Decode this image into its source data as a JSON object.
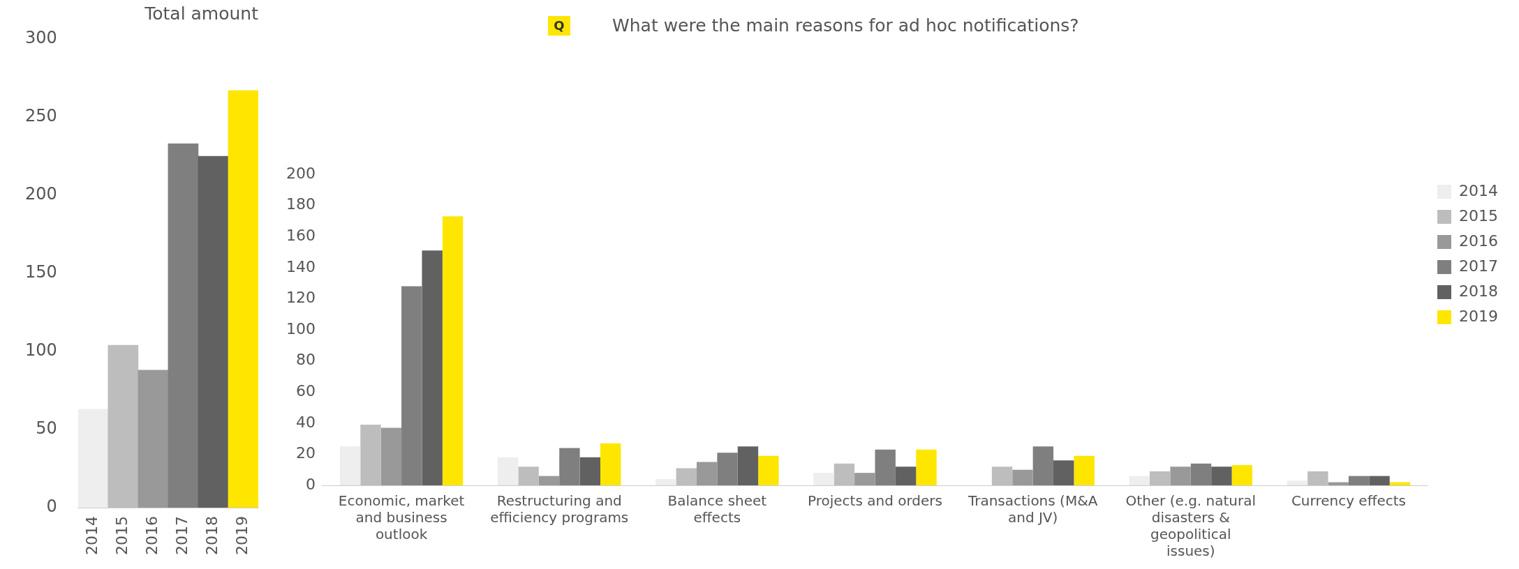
{
  "chart_data": [
    {
      "type": "bar",
      "title": "Total amount",
      "categories": [
        "2014",
        "2015",
        "2016",
        "2017",
        "2018",
        "2019"
      ],
      "values": [
        63,
        104,
        88,
        233,
        225,
        267
      ],
      "colors": [
        "#eeeeee",
        "#bdbdbd",
        "#999999",
        "#7f7f7f",
        "#616161",
        "#ffe600"
      ],
      "ylim": [
        0,
        300
      ],
      "yticks": [
        0,
        50,
        100,
        150,
        200,
        250,
        300
      ]
    },
    {
      "type": "bar",
      "title": "What were the main reasons for ad hoc notifications?",
      "categories": [
        "Economic, market and business outlook",
        "Restructuring and efficiency programs",
        "Balance sheet effects",
        "Projects and orders",
        "Transactions (M&A and JV)",
        "Other (e.g. natural disasters & geopolitical issues)",
        "Currency effects"
      ],
      "series": [
        {
          "name": "2014",
          "color": "#eeeeee",
          "values": [
            25,
            18,
            4,
            8,
            0,
            6,
            3
          ]
        },
        {
          "name": "2015",
          "color": "#bdbdbd",
          "values": [
            39,
            12,
            11,
            14,
            12,
            9,
            9
          ]
        },
        {
          "name": "2016",
          "color": "#999999",
          "values": [
            37,
            6,
            15,
            8,
            10,
            12,
            2
          ]
        },
        {
          "name": "2017",
          "color": "#7f7f7f",
          "values": [
            128,
            24,
            21,
            23,
            25,
            14,
            6
          ]
        },
        {
          "name": "2018",
          "color": "#616161",
          "values": [
            151,
            18,
            25,
            12,
            16,
            12,
            6
          ]
        },
        {
          "name": "2019",
          "color": "#ffe600",
          "values": [
            173,
            27,
            19,
            23,
            19,
            13,
            2
          ]
        }
      ],
      "annotations": [
        "Q"
      ],
      "ylim": [
        0,
        200
      ],
      "yticks": [
        0,
        20,
        40,
        60,
        80,
        100,
        120,
        140,
        160,
        180,
        200
      ],
      "legend": "right"
    }
  ]
}
